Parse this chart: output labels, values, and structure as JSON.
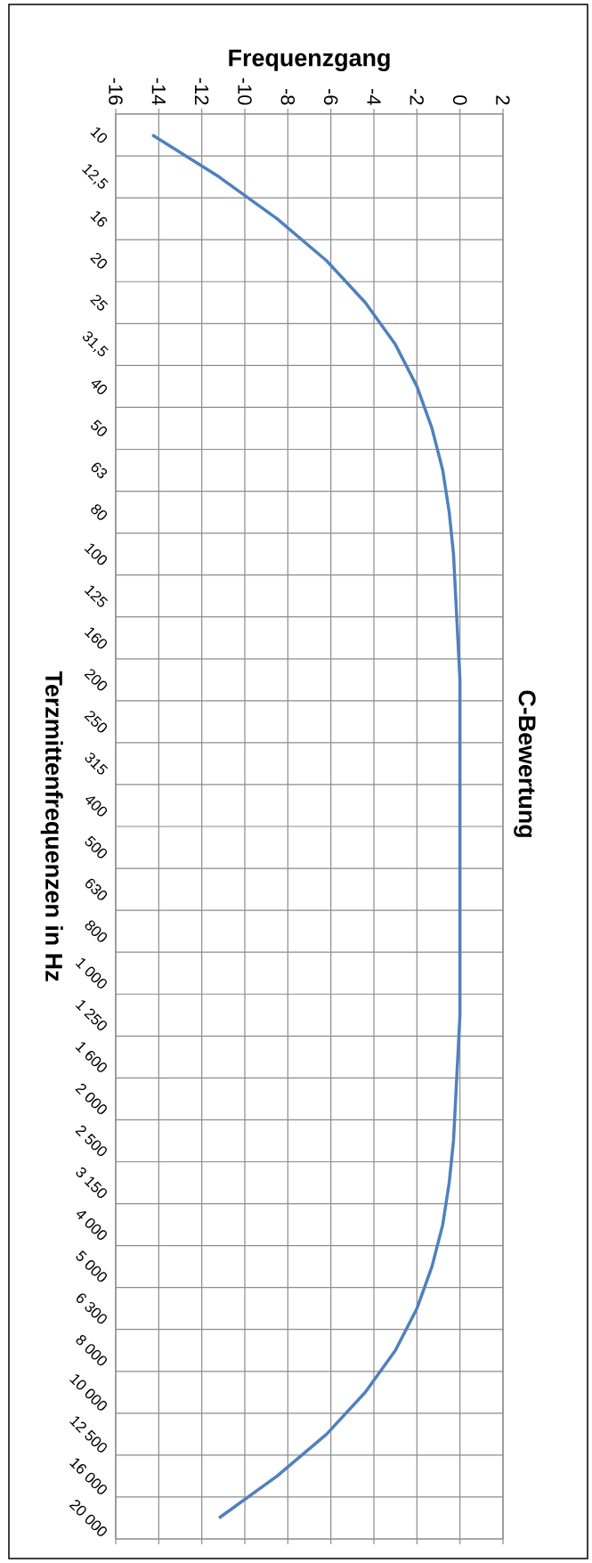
{
  "chart_data": {
    "type": "line",
    "orientation": "horizontal",
    "title": "C-Bewertung",
    "xlabel": "Frequenzgang",
    "ylabel": "Terzmittenfrequenzen in Hz",
    "categories": [
      "10",
      "12,5",
      "16",
      "20",
      "25",
      "31,5",
      "40",
      "50",
      "63",
      "80",
      "100",
      "125",
      "160",
      "200",
      "250",
      "315",
      "400",
      "500",
      "630",
      "800",
      "1 000",
      "1 250",
      "1 600",
      "2 000",
      "2 500",
      "3 150",
      "4 000",
      "5 000",
      "6 300",
      "8 000",
      "10 000",
      "12 500",
      "16 000",
      "20 000"
    ],
    "values": [
      -14.3,
      -11.2,
      -8.5,
      -6.2,
      -4.4,
      -3.0,
      -2.0,
      -1.3,
      -0.8,
      -0.5,
      -0.3,
      -0.2,
      -0.1,
      0,
      0,
      0,
      0,
      0,
      0,
      0,
      0,
      0,
      -0.1,
      -0.2,
      -0.3,
      -0.5,
      -0.8,
      -1.3,
      -2.0,
      -3.0,
      -4.4,
      -6.2,
      -8.5,
      -11.2
    ],
    "color": "#4f81bd",
    "xlim": [
      -16,
      2
    ],
    "xticks": [
      -16,
      -14,
      -12,
      -10,
      -8,
      -6,
      -4,
      -2,
      0,
      2
    ],
    "grid": true
  }
}
